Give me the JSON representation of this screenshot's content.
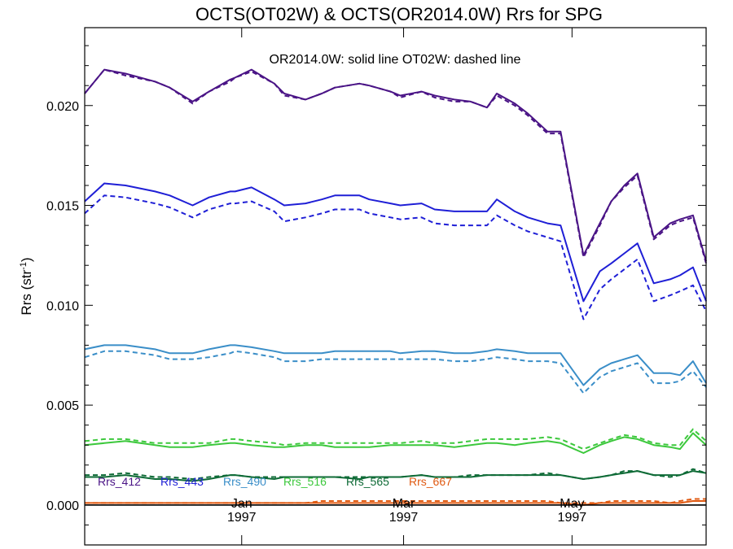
{
  "chart_data": {
    "type": "line",
    "title": "OCTS(OT02W) & OCTS(OR2014.0W)  Rrs for SPG",
    "annotation": "OR2014.0W: solid line   OT02W: dashed line",
    "ylabel": "Rrs (str",
    "ylabel_sup": "-1",
    "ylabel_close": ")",
    "ylim": [
      -0.002,
      0.0239
    ],
    "yticks": [
      "0.000",
      "0.005",
      "0.010",
      "0.015",
      "0.020"
    ],
    "ytick_values": [
      0.0,
      0.005,
      0.01,
      0.015,
      0.02
    ],
    "xlim": [
      0,
      38
    ],
    "xticks": [
      {
        "month": "Jan",
        "year": "1997",
        "x": 9.6
      },
      {
        "month": "Mar",
        "year": "1997",
        "x": 19.5
      },
      {
        "month": "May",
        "year": "1997",
        "x": 29.8
      }
    ],
    "x": [
      0,
      1.2,
      2.5,
      4.3,
      5.2,
      6.6,
      7.6,
      8.9,
      9.2,
      10.2,
      11.6,
      12.2,
      13.5,
      14.5,
      15.3,
      16.8,
      17.4,
      18.7,
      19.3,
      20.6,
      21.4,
      22.6,
      23.6,
      24.6,
      25.2,
      26.3,
      27.1,
      28.3,
      29.1,
      30.5,
      31.5,
      32.2,
      33.0,
      33.8,
      34.8,
      35.8,
      36.4,
      37.2,
      38.0
    ],
    "series": [
      {
        "name": "Rrs_412",
        "color": "#4a1486",
        "solid": [
          0.0206,
          0.0218,
          0.0216,
          0.0212,
          0.0209,
          0.0202,
          0.0207,
          0.0213,
          0.0214,
          0.0218,
          0.0211,
          0.0206,
          0.0203,
          0.0206,
          0.0209,
          0.0211,
          0.021,
          0.0207,
          0.0205,
          0.0207,
          0.0205,
          0.0203,
          0.0202,
          0.0199,
          0.0206,
          0.0201,
          0.0196,
          0.0187,
          0.0187,
          0.0125,
          0.0141,
          0.0152,
          0.016,
          0.0166,
          0.0134,
          0.0141,
          0.0143,
          0.0145,
          0.0122
        ],
        "dashed": [
          0.0206,
          0.0218,
          0.0215,
          0.0212,
          0.0209,
          0.0201,
          0.0207,
          0.0212,
          0.0214,
          0.0217,
          0.0211,
          0.0205,
          0.0203,
          0.0206,
          0.0209,
          0.0211,
          0.021,
          0.0207,
          0.0204,
          0.0207,
          0.0204,
          0.0202,
          0.0202,
          0.0199,
          0.0205,
          0.02,
          0.0195,
          0.0186,
          0.0186,
          0.0124,
          0.014,
          0.0152,
          0.0159,
          0.0165,
          0.0133,
          0.014,
          0.0142,
          0.0144,
          0.0121
        ]
      },
      {
        "name": "Rrs_443",
        "color": "#1f1fd6",
        "solid": [
          0.0152,
          0.0161,
          0.016,
          0.0157,
          0.0155,
          0.015,
          0.0154,
          0.0157,
          0.0157,
          0.0159,
          0.0153,
          0.015,
          0.0151,
          0.0153,
          0.0155,
          0.0155,
          0.0153,
          0.0151,
          0.015,
          0.0151,
          0.0148,
          0.0147,
          0.0147,
          0.0147,
          0.0153,
          0.0147,
          0.0144,
          0.0141,
          0.014,
          0.0102,
          0.0117,
          0.0121,
          0.0126,
          0.0131,
          0.0111,
          0.0113,
          0.0115,
          0.0119,
          0.0102
        ],
        "dashed": [
          0.0146,
          0.0155,
          0.0154,
          0.0151,
          0.0149,
          0.0144,
          0.0148,
          0.0151,
          0.0151,
          0.0152,
          0.0147,
          0.0142,
          0.0144,
          0.0146,
          0.0148,
          0.0148,
          0.0146,
          0.0144,
          0.0143,
          0.0144,
          0.0141,
          0.014,
          0.014,
          0.014,
          0.0145,
          0.014,
          0.0137,
          0.0134,
          0.0132,
          0.0093,
          0.0108,
          0.0113,
          0.0118,
          0.0123,
          0.0102,
          0.0105,
          0.0107,
          0.011,
          0.0097
        ]
      },
      {
        "name": "Rrs_490",
        "color": "#3a8ec8",
        "solid": [
          0.0078,
          0.008,
          0.008,
          0.0078,
          0.0076,
          0.0076,
          0.0078,
          0.008,
          0.008,
          0.0079,
          0.0077,
          0.0076,
          0.0076,
          0.0076,
          0.0077,
          0.0077,
          0.0077,
          0.0077,
          0.0076,
          0.0077,
          0.0077,
          0.0076,
          0.0076,
          0.0077,
          0.0078,
          0.0077,
          0.0076,
          0.0076,
          0.0076,
          0.006,
          0.0068,
          0.0071,
          0.0073,
          0.0075,
          0.0066,
          0.0066,
          0.0065,
          0.0072,
          0.0061
        ],
        "dashed": [
          0.0074,
          0.0077,
          0.0077,
          0.0075,
          0.0073,
          0.0073,
          0.0074,
          0.0076,
          0.0077,
          0.0076,
          0.0074,
          0.0072,
          0.0072,
          0.0073,
          0.0073,
          0.0073,
          0.0073,
          0.0073,
          0.0073,
          0.0073,
          0.0073,
          0.0072,
          0.0072,
          0.0073,
          0.0074,
          0.0073,
          0.0072,
          0.0072,
          0.0071,
          0.0056,
          0.0064,
          0.0067,
          0.0069,
          0.0071,
          0.0061,
          0.0061,
          0.0062,
          0.0067,
          0.0059
        ]
      },
      {
        "name": "Rrs_516",
        "color": "#3cc83c",
        "solid": [
          0.003,
          0.0031,
          0.0032,
          0.003,
          0.0029,
          0.0029,
          0.003,
          0.0031,
          0.0031,
          0.003,
          0.0029,
          0.0029,
          0.003,
          0.003,
          0.0029,
          0.0029,
          0.0029,
          0.003,
          0.003,
          0.003,
          0.003,
          0.0029,
          0.003,
          0.0031,
          0.0031,
          0.003,
          0.0031,
          0.0032,
          0.0031,
          0.0026,
          0.003,
          0.0032,
          0.0034,
          0.0033,
          0.003,
          0.0029,
          0.0028,
          0.0036,
          0.003
        ],
        "dashed": [
          0.0032,
          0.0033,
          0.0033,
          0.0031,
          0.0031,
          0.0031,
          0.0031,
          0.0033,
          0.0033,
          0.0032,
          0.0031,
          0.003,
          0.0031,
          0.0031,
          0.0031,
          0.0031,
          0.0031,
          0.0031,
          0.0031,
          0.0032,
          0.0031,
          0.0031,
          0.0032,
          0.0033,
          0.0033,
          0.0033,
          0.0033,
          0.0034,
          0.0033,
          0.0028,
          0.0031,
          0.0033,
          0.0035,
          0.0034,
          0.0031,
          0.003,
          0.003,
          0.0038,
          0.0032
        ]
      },
      {
        "name": "Rrs_565",
        "color": "#0f6b37",
        "solid": [
          0.0014,
          0.0014,
          0.0015,
          0.0013,
          0.0013,
          0.0012,
          0.0013,
          0.0015,
          0.0015,
          0.0014,
          0.0013,
          0.0014,
          0.0014,
          0.0014,
          0.0014,
          0.0013,
          0.0014,
          0.0014,
          0.0014,
          0.0015,
          0.0014,
          0.0014,
          0.0014,
          0.0015,
          0.0015,
          0.0015,
          0.0015,
          0.0015,
          0.0015,
          0.0013,
          0.0014,
          0.0015,
          0.0016,
          0.0017,
          0.0015,
          0.0015,
          0.0015,
          0.0017,
          0.0016
        ],
        "dashed": [
          0.0015,
          0.0015,
          0.0016,
          0.0014,
          0.0014,
          0.0013,
          0.0014,
          0.0015,
          0.0015,
          0.0014,
          0.0014,
          0.0014,
          0.0014,
          0.0014,
          0.0014,
          0.0014,
          0.0014,
          0.0014,
          0.0014,
          0.0015,
          0.0014,
          0.0014,
          0.0015,
          0.0015,
          0.0015,
          0.0015,
          0.0015,
          0.0016,
          0.0015,
          0.0013,
          0.0014,
          0.0015,
          0.0017,
          0.0017,
          0.0015,
          0.0014,
          0.0015,
          0.0018,
          0.0016
        ]
      },
      {
        "name": "Rrs_667",
        "color": "#e05a12",
        "solid": [
          0.0001,
          0.0001,
          0.0001,
          0.0001,
          0.0001,
          0.0001,
          0.0001,
          0.0001,
          0.0001,
          0.0001,
          0.0001,
          0.0001,
          0.0001,
          0.0001,
          0.0001,
          0.0001,
          0.0001,
          0.0001,
          0.0001,
          0.0001,
          0.0001,
          0.0001,
          0.0001,
          0.0001,
          0.0001,
          0.0001,
          0.0001,
          0.0001,
          0.0001,
          0.0,
          0.0001,
          0.0001,
          0.0001,
          0.0001,
          0.0001,
          0.0001,
          0.0001,
          0.0002,
          0.0002
        ],
        "dashed": [
          0.0001,
          0.0001,
          0.0001,
          0.0001,
          0.0001,
          0.0001,
          0.0001,
          0.0001,
          0.0001,
          0.0001,
          0.0001,
          0.0001,
          0.0001,
          0.0002,
          0.0002,
          0.0002,
          0.0002,
          0.0002,
          0.0002,
          0.0002,
          0.0002,
          0.0002,
          0.0002,
          0.0002,
          0.0002,
          0.0002,
          0.0002,
          0.0002,
          0.0001,
          0.0001,
          0.0001,
          0.0002,
          0.0002,
          0.0002,
          0.0002,
          0.0001,
          0.0002,
          0.0003,
          0.0003
        ]
      }
    ],
    "zero_line": 0.0,
    "grid": false,
    "legend_position": "bottom-left"
  }
}
